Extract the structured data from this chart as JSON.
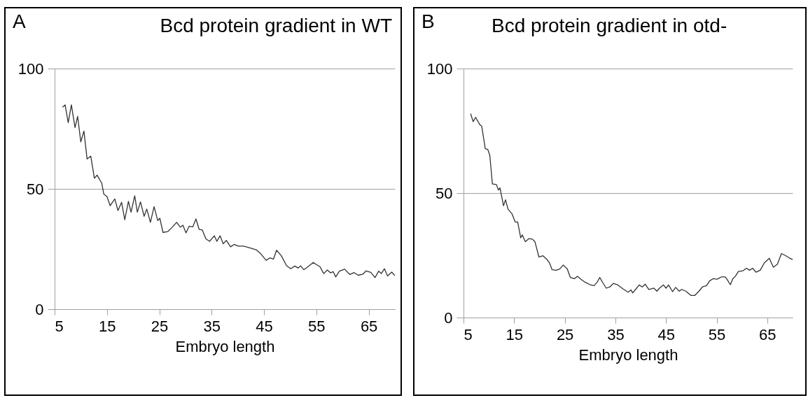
{
  "chart_data": [
    {
      "type": "line",
      "title": "Bcd protein gradient in WT",
      "xlabel": "Embryo length",
      "annotations": [
        "A"
      ],
      "xlim": [
        5,
        70
      ],
      "ylim": [
        0,
        100
      ],
      "xticks": [
        5,
        15,
        25,
        35,
        45,
        55,
        65
      ],
      "yticks": [
        0,
        50,
        100
      ],
      "grid": "y",
      "x": [
        6.5,
        7.0,
        7.6,
        8.2,
        8.9,
        9.4,
        10.0,
        10.6,
        11.2,
        11.9,
        12.6,
        13.1,
        14.0,
        14.4,
        15.0,
        15.6,
        16.5,
        17.1,
        17.8,
        18.4,
        19.1,
        19.6,
        20.3,
        20.8,
        21.4,
        22.1,
        22.6,
        23.3,
        24.0,
        24.7,
        25.1,
        25.7,
        26.6,
        27.4,
        28.3,
        29.0,
        29.5,
        30.1,
        30.7,
        31.4,
        32.0,
        32.6,
        33.2,
        33.9,
        34.6,
        35.5,
        36.0,
        36.6,
        37.2,
        37.8,
        38.6,
        39.3,
        40.1,
        41.1,
        42.3,
        43.5,
        44.3,
        45.4,
        46.1,
        46.8,
        47.4,
        48.3,
        49.3,
        50.1,
        50.9,
        51.5,
        52.0,
        52.6,
        53.2,
        54.4,
        55.7,
        56.4,
        57.1,
        57.7,
        58.2,
        58.7,
        59.4,
        60.4,
        61.4,
        62.2,
        63.0,
        63.9,
        64.5,
        65.4,
        66.2,
        66.9,
        67.4,
        68.0,
        68.6,
        69.4,
        70.0
      ],
      "series": [
        {
          "color": "#333333",
          "values": [
            83.9,
            84.9,
            77.5,
            84.9,
            75.5,
            80.1,
            69.5,
            74.0,
            62.4,
            63.6,
            54.4,
            55.7,
            52.4,
            47.8,
            46.8,
            43.0,
            45.8,
            41.0,
            44.4,
            37.2,
            44.8,
            40.3,
            47.1,
            40.3,
            44.6,
            38.6,
            41.6,
            36.1,
            42.6,
            36.8,
            37.8,
            31.9,
            32.2,
            33.9,
            36.1,
            34.1,
            34.9,
            31.7,
            34.5,
            34.2,
            37.5,
            33.2,
            32.9,
            29.2,
            28.2,
            30.5,
            28.2,
            30.5,
            27.2,
            28.6,
            25.9,
            26.9,
            26.2,
            26.2,
            25.5,
            24.7,
            23.2,
            20.3,
            21.3,
            20.8,
            24.5,
            22.2,
            18.1,
            16.8,
            17.9,
            17.1,
            18.0,
            16.4,
            17.3,
            19.4,
            17.6,
            14.8,
            16.3,
            15.1,
            15.6,
            13.4,
            15.8,
            16.6,
            14.4,
            15.2,
            14.1,
            14.6,
            15.9,
            15.3,
            13.1,
            15.8,
            14.8,
            16.8,
            13.8,
            15.4,
            13.9
          ]
        }
      ]
    },
    {
      "type": "line",
      "title": "Bcd protein gradient in otd-",
      "xlabel": "Embryo length",
      "annotations": [
        "B"
      ],
      "xlim": [
        5,
        70
      ],
      "ylim": [
        0,
        100
      ],
      "xticks": [
        5,
        15,
        25,
        35,
        45,
        55,
        65
      ],
      "yticks": [
        0,
        50,
        100
      ],
      "grid": "y",
      "x": [
        6.4,
        6.9,
        7.4,
        8.2,
        8.6,
        9.3,
        9.8,
        10.2,
        10.7,
        11.5,
        11.9,
        12.2,
        12.9,
        13.3,
        13.8,
        14.6,
        15.2,
        15.7,
        16.3,
        16.6,
        17.2,
        17.9,
        18.6,
        19.1,
        19.9,
        20.7,
        21.5,
        22.0,
        22.5,
        23.3,
        24.0,
        24.7,
        25.5,
        26.1,
        26.9,
        27.5,
        28.2,
        29.0,
        30.0,
        30.8,
        31.4,
        31.9,
        32.6,
        33.2,
        33.9,
        34.6,
        35.4,
        36.5,
        37.5,
        38.1,
        38.4,
        39.0,
        39.7,
        40.3,
        40.9,
        41.6,
        42.6,
        43.2,
        43.7,
        44.5,
        45.0,
        45.5,
        46.3,
        46.9,
        47.6,
        48.1,
        48.9,
        49.9,
        50.7,
        51.5,
        52.2,
        53.0,
        53.6,
        54.3,
        55.1,
        55.9,
        56.7,
        57.1,
        57.7,
        58.2,
        58.7,
        59.3,
        60.2,
        60.9,
        61.5,
        62.1,
        62.8,
        63.6,
        64.4,
        65.4,
        66.2,
        67.0,
        67.8,
        68.5,
        69.3,
        70.0
      ],
      "series": [
        {
          "color": "#333333",
          "values": [
            81.9,
            78.7,
            80.4,
            77.5,
            76.8,
            67.8,
            67.5,
            65.1,
            53.7,
            53.4,
            51.2,
            52.1,
            44.9,
            47.3,
            43.5,
            41.6,
            38.4,
            38.4,
            32.0,
            33.2,
            30.5,
            31.7,
            31.5,
            30.5,
            24.3,
            24.8,
            23.3,
            21.9,
            19.2,
            19.0,
            19.5,
            21.1,
            19.5,
            16.1,
            15.6,
            16.6,
            15.4,
            14.2,
            13.2,
            12.8,
            14.2,
            16.1,
            13.7,
            11.8,
            12.3,
            13.7,
            13.2,
            11.5,
            10.2,
            11.1,
            9.9,
            11.3,
            13.1,
            12.3,
            13.4,
            11.3,
            11.8,
            10.6,
            11.8,
            13.1,
            11.8,
            13.1,
            10.4,
            12.1,
            10.6,
            11.3,
            10.6,
            8.9,
            8.9,
            10.6,
            12.3,
            12.8,
            14.7,
            15.6,
            15.4,
            16.3,
            16.3,
            15.2,
            13.2,
            15.6,
            16.6,
            18.5,
            18.8,
            19.8,
            19.0,
            19.8,
            18.2,
            19.0,
            21.9,
            23.8,
            20.2,
            21.4,
            25.7,
            25.0,
            24.0,
            23.3
          ]
        }
      ]
    }
  ]
}
